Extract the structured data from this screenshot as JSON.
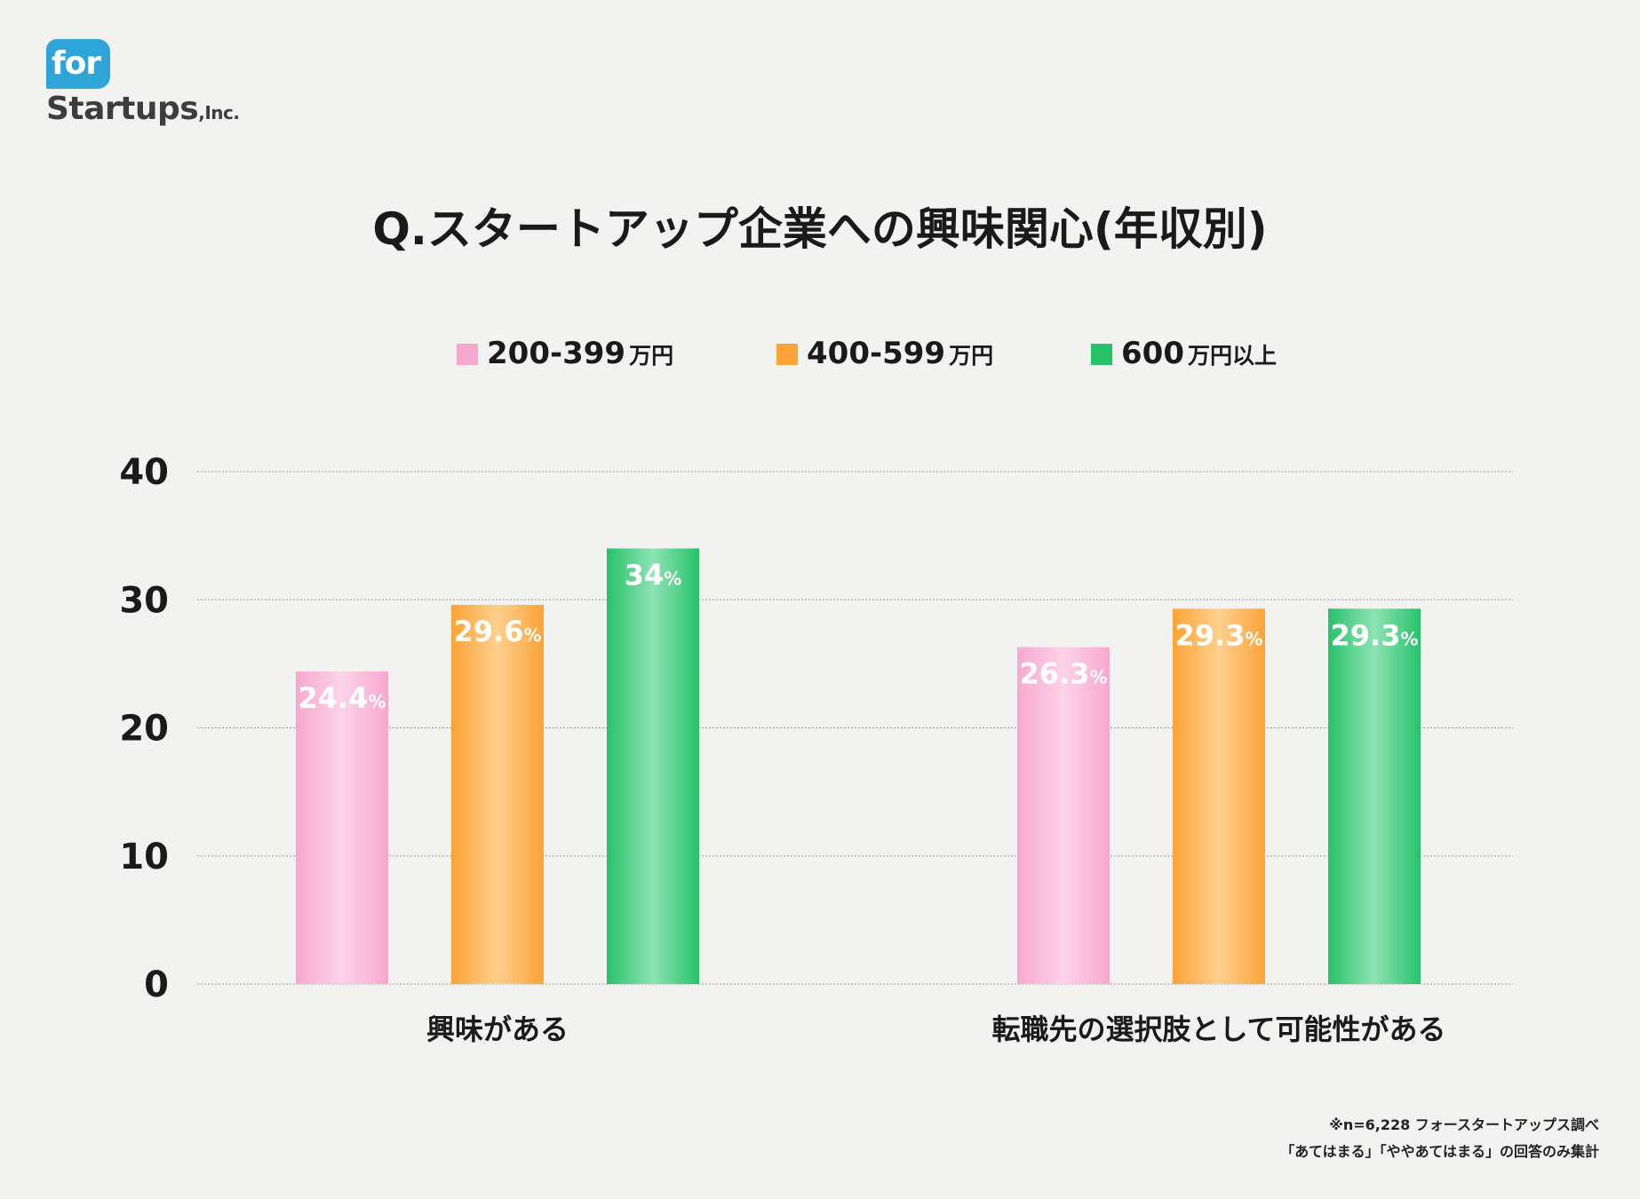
{
  "logo": {
    "badge_text": "for",
    "word": "Startups",
    "suffix": ",Inc."
  },
  "chart_data": {
    "type": "bar",
    "title": "Q.スタートアップ企業への興味関心(年収別)",
    "categories": [
      "興味がある",
      "転職先の選択肢として可能性がある"
    ],
    "series": [
      {
        "name": "200-399",
        "unit": "万円",
        "color": "#f7a8cf",
        "values": [
          24.4,
          26.3
        ],
        "labels": [
          "24.4",
          "26.3"
        ]
      },
      {
        "name": "400-599",
        "unit": "万円",
        "color": "#fba336",
        "values": [
          29.6,
          29.3
        ],
        "labels": [
          "29.6",
          "29.3"
        ]
      },
      {
        "name": "600",
        "unit": "万円以上",
        "color": "#27c26a",
        "values": [
          34,
          29.3
        ],
        "labels": [
          "34",
          "29.3"
        ]
      }
    ],
    "value_suffix": "%",
    "ylim": [
      0,
      40
    ],
    "yticks": [
      "0",
      "10",
      "20",
      "30",
      "40"
    ],
    "grid": true,
    "legend_position": "top-center",
    "xlabel": "",
    "ylabel": ""
  },
  "footnote": {
    "line1": "※n=6,228 フォースタートアップス調べ",
    "line2": "「あてはまる」「ややあてはまる」の回答のみ集計"
  }
}
